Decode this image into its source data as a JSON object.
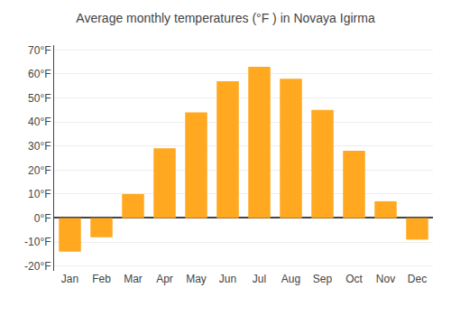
{
  "chart_data": {
    "type": "bar",
    "title": "Average monthly temperatures (°F ) in Novaya Igirma",
    "categories": [
      "Jan",
      "Feb",
      "Mar",
      "Apr",
      "May",
      "Jun",
      "Jul",
      "Aug",
      "Sep",
      "Oct",
      "Nov",
      "Dec"
    ],
    "values": [
      -14,
      -8,
      10,
      29,
      44,
      57,
      63,
      58,
      45,
      28,
      7,
      -9
    ],
    "color": "#FFA820",
    "ylim": [
      -22,
      72
    ],
    "yticks": [
      {
        "value": -20,
        "label": "-20°F"
      },
      {
        "value": -10,
        "label": "-10°F"
      },
      {
        "value": 0,
        "label": "0°F"
      },
      {
        "value": 10,
        "label": "10°F"
      },
      {
        "value": 20,
        "label": "20°F"
      },
      {
        "value": 30,
        "label": "30°F"
      },
      {
        "value": 40,
        "label": "40°F"
      },
      {
        "value": 50,
        "label": "50°F"
      },
      {
        "value": 60,
        "label": "60°F"
      },
      {
        "value": 70,
        "label": "70°F"
      }
    ],
    "grid": true
  }
}
